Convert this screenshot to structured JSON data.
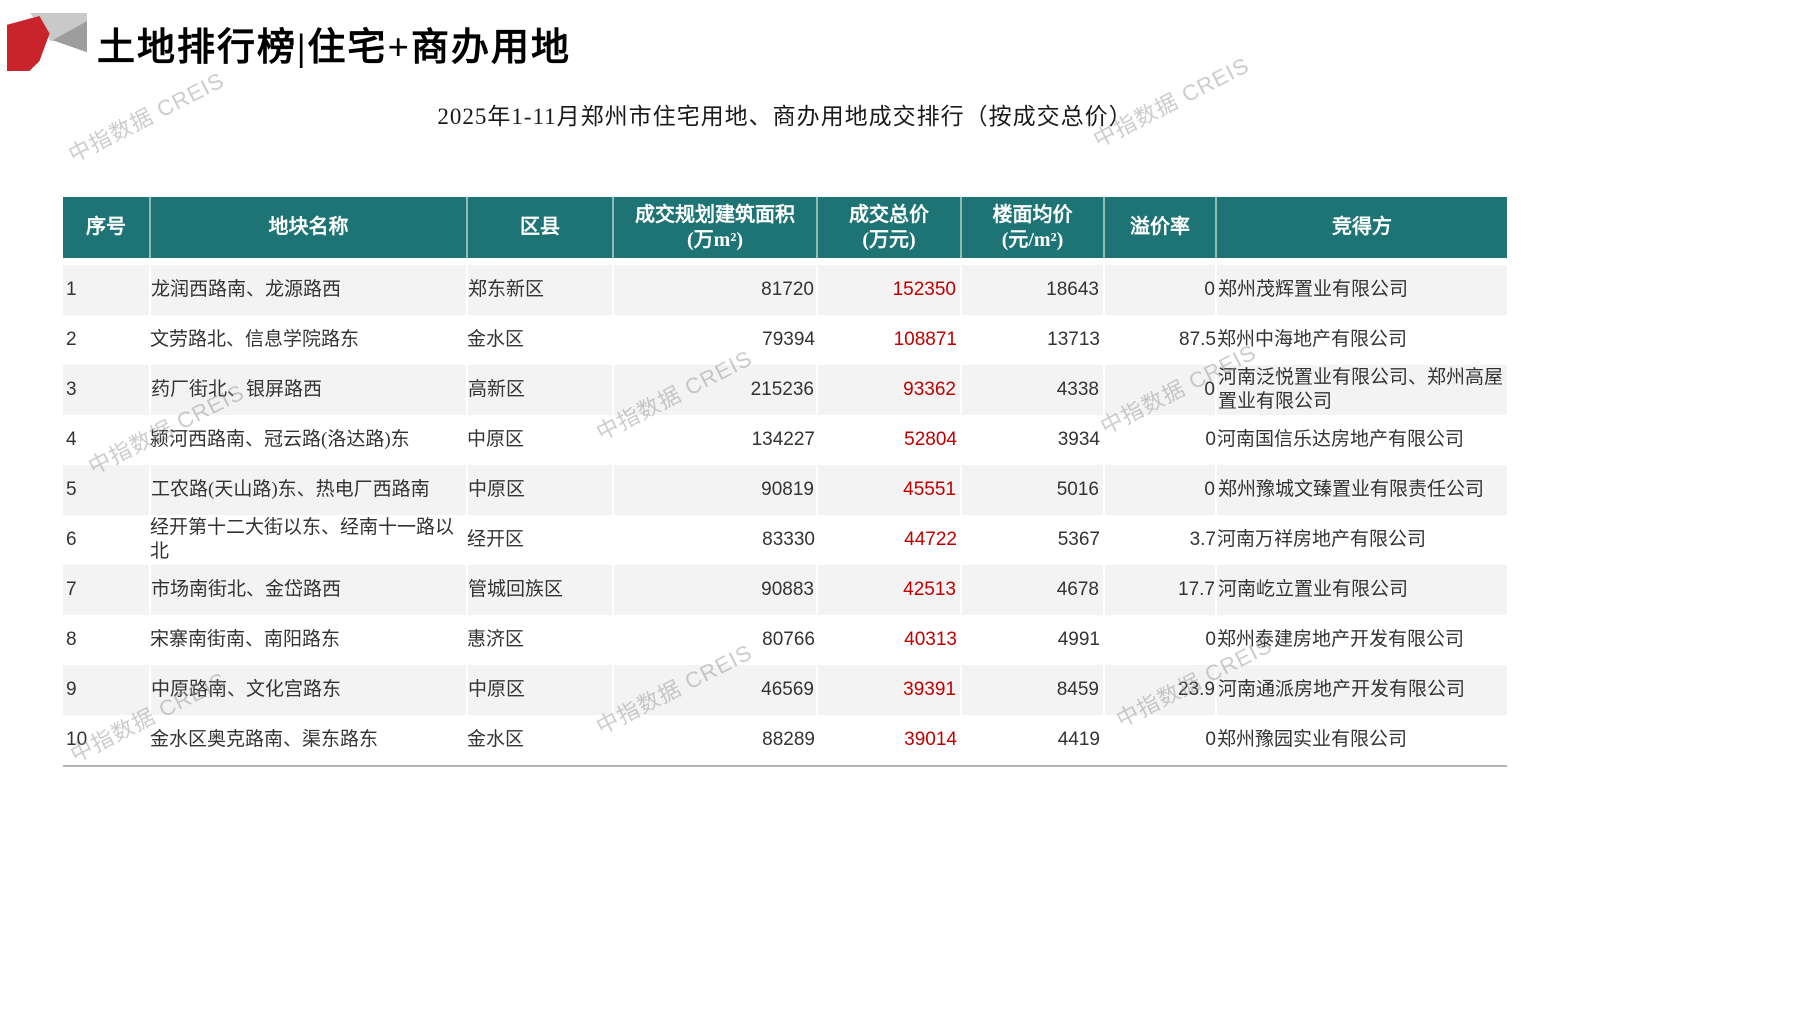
{
  "page": {
    "title": "土地排行榜|住宅+商办用地",
    "subtitle": "2025年1-11月郑州市住宅用地、商办用地成交排行（按成交总价）",
    "watermark": "中指数据 CREIS"
  },
  "colors": {
    "header_bg": "#1e7474",
    "total_price_red": "#c00000",
    "row_alt_bg": "#f3f3f3",
    "logo_red": "#c9242b"
  },
  "table": {
    "columns": [
      "序号",
      "地块名称",
      "区县",
      "成交规划建筑面积\n(万m²)",
      "成交总价\n(万元)",
      "楼面均价\n(元/m²)",
      "溢价率",
      "竞得方"
    ],
    "rows": [
      [
        "1",
        "龙润西路南、龙源路西",
        "郑东新区",
        "81720",
        "152350",
        "18643",
        "0",
        "郑州茂辉置业有限公司"
      ],
      [
        "2",
        "文劳路北、信息学院路东",
        "金水区",
        "79394",
        "108871",
        "13713",
        "87.5",
        "郑州中海地产有限公司"
      ],
      [
        "3",
        "药厂街北、银屏路西",
        "高新区",
        "215236",
        "93362",
        "4338",
        "0",
        "河南泛悦置业有限公司、郑州高屋置业有限公司"
      ],
      [
        "4",
        "颍河西路南、冠云路(洛达路)东",
        "中原区",
        "134227",
        "52804",
        "3934",
        "0",
        "河南国信乐达房地产有限公司"
      ],
      [
        "5",
        "工农路(天山路)东、热电厂西路南",
        "中原区",
        "90819",
        "45551",
        "5016",
        "0",
        "郑州豫城文臻置业有限责任公司"
      ],
      [
        "6",
        "经开第十二大街以东、经南十一路以北",
        "经开区",
        "83330",
        "44722",
        "5367",
        "3.7",
        "河南万祥房地产有限公司"
      ],
      [
        "7",
        "市场南街北、金岱路西",
        "管城回族区",
        "90883",
        "42513",
        "4678",
        "17.7",
        "河南屹立置业有限公司"
      ],
      [
        "8",
        "宋寨南街南、南阳路东",
        "惠济区",
        "80766",
        "40313",
        "4991",
        "0",
        "郑州泰建房地产开发有限公司"
      ],
      [
        "9",
        "中原路南、文化宫路东",
        "中原区",
        "46569",
        "39391",
        "8459",
        "23.9",
        "河南通派房地产开发有限公司"
      ],
      [
        "10",
        "金水区奥克路南、渠东路东",
        "金水区",
        "88289",
        "39014",
        "4419",
        "0",
        "郑州豫园实业有限公司"
      ]
    ]
  },
  "chart_data": {
    "type": "table",
    "title": "2025年1-11月郑州市住宅用地、商办用地成交排行（按成交总价）",
    "columns": [
      "序号",
      "地块名称",
      "区县",
      "成交规划建筑面积(万m²)",
      "成交总价(万元)",
      "楼面均价(元/m²)",
      "溢价率",
      "竞得方"
    ],
    "rows": [
      [
        1,
        "龙润西路南、龙源路西",
        "郑东新区",
        81720,
        152350,
        18643,
        0,
        "郑州茂辉置业有限公司"
      ],
      [
        2,
        "文劳路北、信息学院路东",
        "金水区",
        79394,
        108871,
        13713,
        87.5,
        "郑州中海地产有限公司"
      ],
      [
        3,
        "药厂街北、银屏路西",
        "高新区",
        215236,
        93362,
        4338,
        0,
        "河南泛悦置业有限公司、郑州高屋置业有限公司"
      ],
      [
        4,
        "颍河西路南、冠云路(洛达路)东",
        "中原区",
        134227,
        52804,
        3934,
        0,
        "河南国信乐达房地产有限公司"
      ],
      [
        5,
        "工农路(天山路)东、热电厂西路南",
        "中原区",
        90819,
        45551,
        5016,
        0,
        "郑州豫城文臻置业有限责任公司"
      ],
      [
        6,
        "经开第十二大街以东、经南十一路以北",
        "经开区",
        83330,
        44722,
        5367,
        3.7,
        "河南万祥房地产有限公司"
      ],
      [
        7,
        "市场南街北、金岱路西",
        "管城回族区",
        90883,
        42513,
        4678,
        17.7,
        "河南屹立置业有限公司"
      ],
      [
        8,
        "宋寨南街南、南阳路东",
        "惠济区",
        80766,
        40313,
        4991,
        0,
        "郑州泰建房地产开发有限公司"
      ],
      [
        9,
        "中原路南、文化宫路东",
        "中原区",
        46569,
        39391,
        8459,
        23.9,
        "河南通派房地产开发有限公司"
      ],
      [
        10,
        "金水区奥克路南、渠东路东",
        "金水区",
        88289,
        39014,
        4419,
        0,
        "郑州豫园实业有限公司"
      ]
    ]
  }
}
